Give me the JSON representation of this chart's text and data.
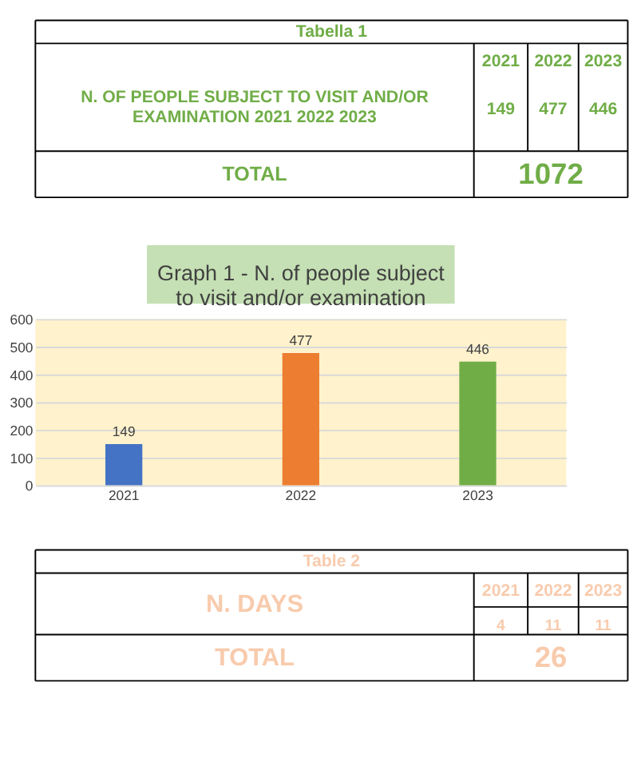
{
  "chart_data": [
    {
      "type": "other",
      "title": "Tabella 1",
      "color": "#70ad47",
      "categories": [
        "2021",
        "2022",
        "2023"
      ],
      "values": [
        149,
        477,
        446
      ],
      "data_labels": true,
      "annotations": [
        "N. OF PEOPLE SUBJECT TO VISIT AND/OR EXAMINATION 2021 2022 2023",
        "TOTAL",
        "1072"
      ]
    },
    {
      "type": "bar",
      "title": "Graph 1 - N. of  people subject to visit and/or examination",
      "categories": [
        "2021",
        "2022",
        "2023"
      ],
      "values": [
        149,
        477,
        446
      ],
      "colors": [
        "#4472c4",
        "#ed7d31",
        "#70ad47"
      ],
      "ylim": [
        0,
        600
      ],
      "yticks": [
        0,
        100,
        200,
        300,
        400,
        500,
        600
      ],
      "grid": "y",
      "data_labels": true
    },
    {
      "type": "other",
      "title": "Table 2",
      "color": "#f8cbad",
      "categories": [
        "2021",
        "2022",
        "2023"
      ],
      "values": [
        4,
        11,
        11
      ],
      "data_labels": true,
      "annotations": [
        "N. DAYS",
        "TOTAL",
        "26"
      ]
    }
  ]
}
